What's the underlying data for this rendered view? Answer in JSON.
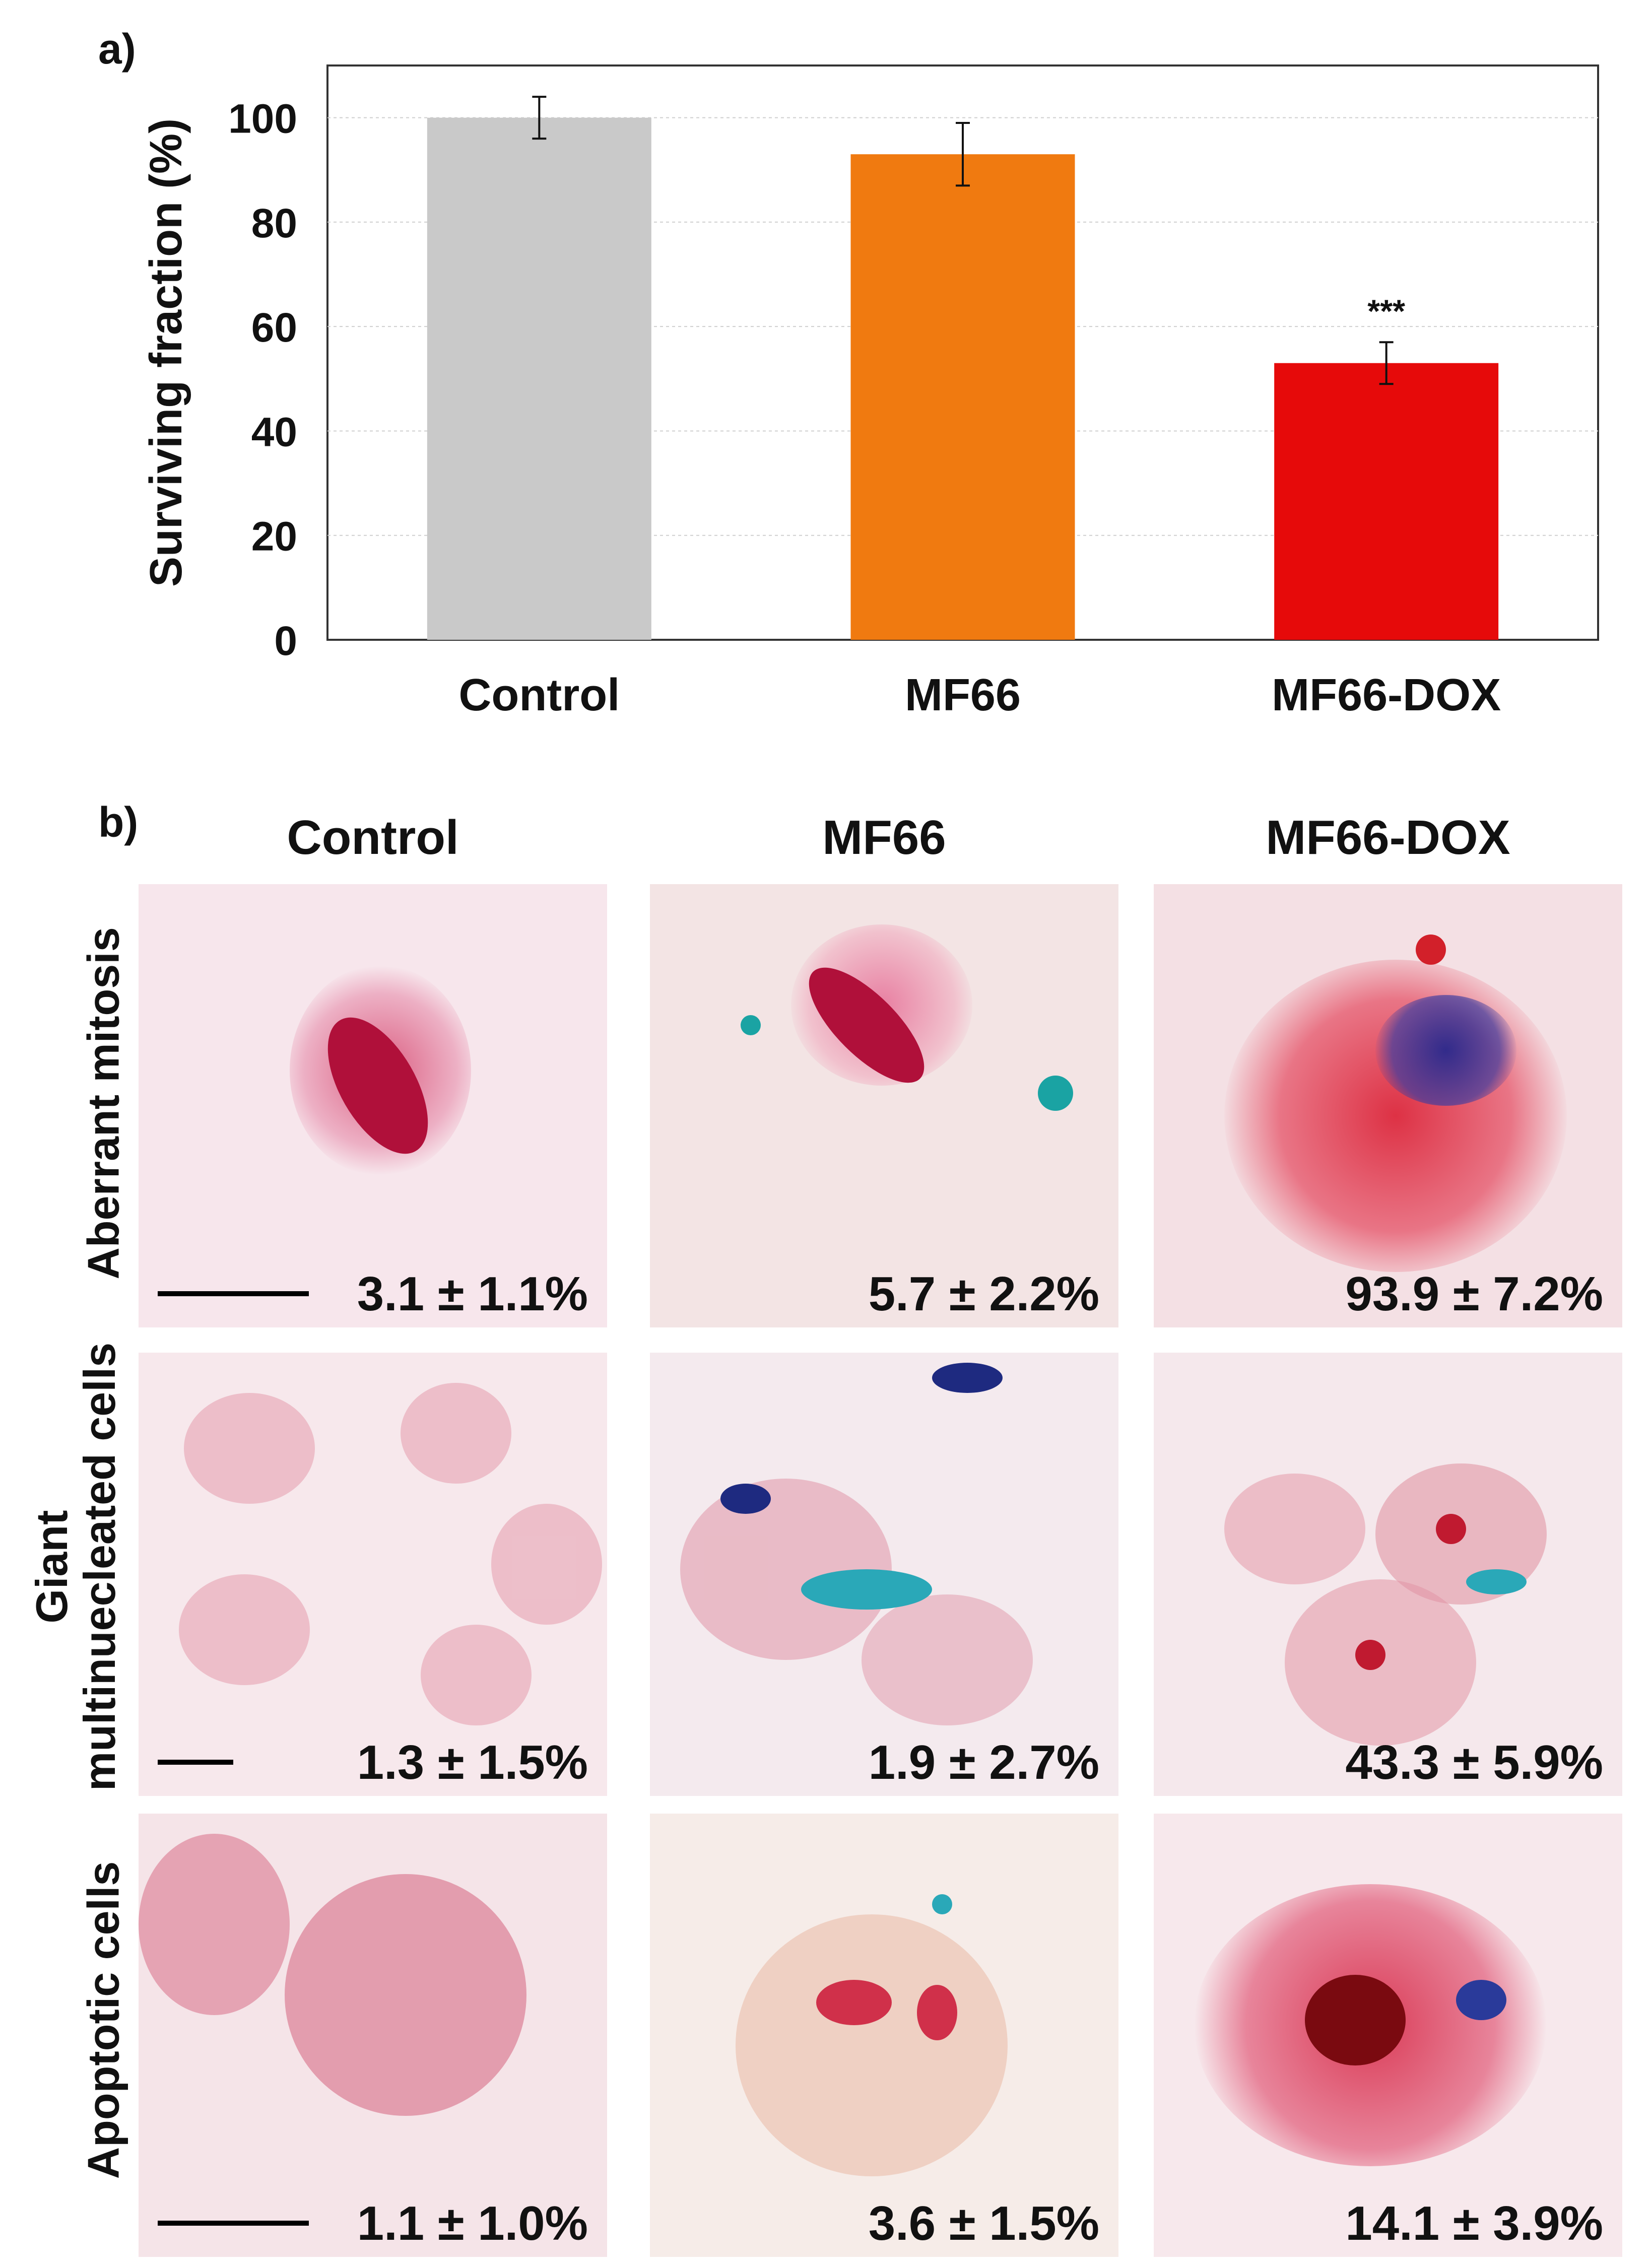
{
  "panel_a_label": "a)",
  "panel_b_label": "b)",
  "chart_data": {
    "type": "bar",
    "title": "",
    "xlabel": "",
    "ylabel": "Surviving fraction (%)",
    "ylim": [
      0,
      110
    ],
    "yticks": [
      0,
      20,
      40,
      60,
      80,
      100
    ],
    "grid": true,
    "categories": [
      "Control",
      "MF66",
      "MF66-DOX"
    ],
    "values": [
      100,
      93,
      53
    ],
    "errors": [
      4,
      6,
      4
    ],
    "colors": [
      "#c9c9c9",
      "#f07a10",
      "#e60a0a"
    ],
    "significance": [
      "",
      "",
      "***"
    ]
  },
  "grid": {
    "columns": [
      "Control",
      "MF66",
      "MF66-DOX"
    ],
    "rows": [
      {
        "label": "Aberrant mitosis",
        "values": [
          "3.1 ± 1.1%",
          "5.7 ± 2.2%",
          "93.9 ± 7.2%"
        ]
      },
      {
        "label_line1": "Giant",
        "label_line2": "multinuecleated cells",
        "values": [
          "1.3 ± 1.5%",
          "1.9 ± 2.7%",
          "43.3 ± 5.9%"
        ]
      },
      {
        "label": "Apoptotic cells",
        "values": [
          "1.1 ± 1.0%",
          "3.6 ± 1.5%",
          "14.1 ± 3.9%"
        ]
      }
    ]
  }
}
